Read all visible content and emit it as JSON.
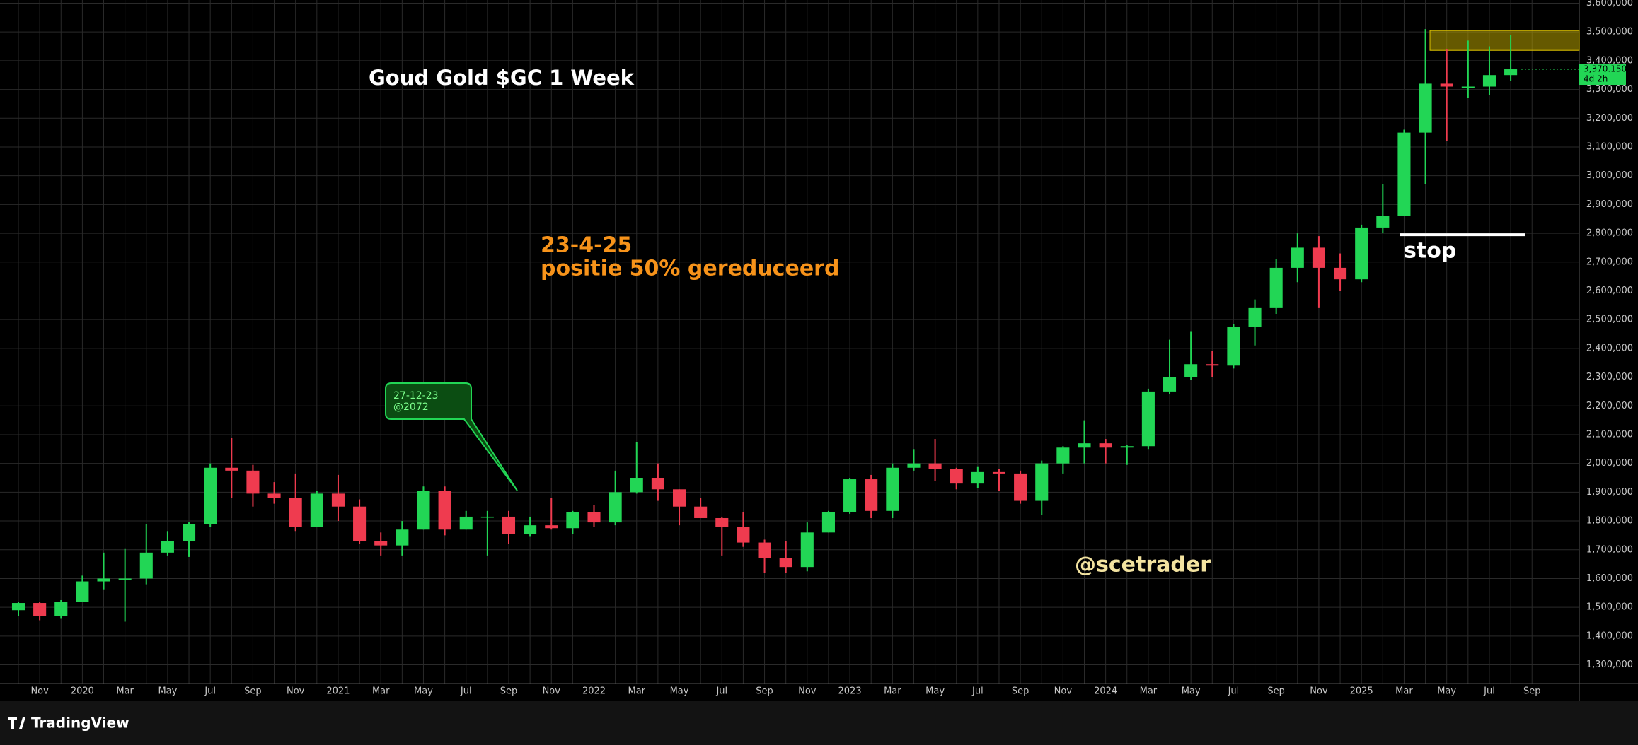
{
  "chart_data": {
    "type": "candlestick",
    "title": "Goud Gold $GC 1 Week",
    "categories": [
      null,
      "Nov",
      null,
      "2020",
      null,
      "Mar",
      null,
      "May",
      null,
      "Jul",
      null,
      "Sep",
      null,
      "Nov",
      null,
      "2021",
      null,
      "Mar",
      null,
      "May",
      null,
      "Jul",
      null,
      "Sep",
      null,
      "Nov",
      null,
      "2022",
      null,
      "Mar",
      null,
      "May",
      null,
      "Jul",
      null,
      "Sep",
      null,
      "Nov",
      null,
      "2023",
      null,
      "Mar",
      null,
      "May",
      null,
      "Jul",
      null,
      "Sep",
      null,
      "Nov",
      null,
      "2024",
      null,
      "Mar",
      null,
      "May",
      null,
      "Jul",
      null,
      "Sep",
      null,
      "Nov",
      null,
      "2025",
      null,
      "Mar",
      null,
      "May",
      null,
      "Jul",
      null,
      "Sep"
    ],
    "open": [
      1490000,
      1515000,
      1470000,
      1520000,
      1590000,
      1600000,
      1600000,
      1690000,
      1730000,
      1790000,
      1985000,
      1975000,
      1895000,
      1880000,
      1780000,
      1895000,
      1850000,
      1730000,
      1715000,
      1770000,
      1905000,
      1770000,
      1815000,
      1815000,
      1755000,
      1785000,
      1775000,
      1830000,
      1795000,
      1900000,
      1950000,
      1910000,
      1850000,
      1810000,
      1780000,
      1725000,
      1670000,
      1640000,
      1760000,
      1830000,
      1945000,
      1835000,
      1985000,
      2000000,
      1980000,
      1930000,
      1970000,
      1965000,
      1870000,
      2000000,
      2055000,
      2070000,
      2055000,
      2060000,
      2250000,
      2300000,
      2345000,
      2340000,
      2475000,
      2540000,
      2680000,
      2750000,
      2680000,
      2640000,
      2820000,
      2860000,
      3150000,
      3320000,
      3310000,
      3310000,
      3350000,
      null
    ],
    "high": [
      1520000,
      1520000,
      1525000,
      1610000,
      1690000,
      1705000,
      1790000,
      1765000,
      1795000,
      2000000,
      2090000,
      1995000,
      1935000,
      1965000,
      1905000,
      1960000,
      1875000,
      1760000,
      1800000,
      1920000,
      1920000,
      1835000,
      1835000,
      1835000,
      1815000,
      1880000,
      1835000,
      1855000,
      1975000,
      2075000,
      2000000,
      1910000,
      1880000,
      1815000,
      1830000,
      1735000,
      1730000,
      1795000,
      1835000,
      1950000,
      1960000,
      2000000,
      2050000,
      2085000,
      1985000,
      1990000,
      1980000,
      1975000,
      2010000,
      2060000,
      2150000,
      2085000,
      2065000,
      2260000,
      2430000,
      2460000,
      2390000,
      2485000,
      2570000,
      2710000,
      2800000,
      2790000,
      2730000,
      2830000,
      2970000,
      3160000,
      3510000,
      3440000,
      3470000,
      3450000,
      3490000,
      null
    ],
    "low": [
      1470000,
      1455000,
      1460000,
      1520000,
      1560000,
      1450000,
      1580000,
      1680000,
      1675000,
      1780000,
      1880000,
      1850000,
      1860000,
      1765000,
      1780000,
      1800000,
      1720000,
      1680000,
      1680000,
      1770000,
      1750000,
      1770000,
      1680000,
      1720000,
      1745000,
      1770000,
      1755000,
      1780000,
      1785000,
      1895000,
      1870000,
      1785000,
      1810000,
      1680000,
      1710000,
      1620000,
      1620000,
      1625000,
      1760000,
      1825000,
      1810000,
      1810000,
      1975000,
      1940000,
      1910000,
      1915000,
      1905000,
      1860000,
      1820000,
      1965000,
      2000000,
      2000000,
      1995000,
      2050000,
      2240000,
      2290000,
      2300000,
      2330000,
      2410000,
      2520000,
      2630000,
      2540000,
      2600000,
      2630000,
      2800000,
      2860000,
      2970000,
      3120000,
      3270000,
      3280000,
      3330000,
      null
    ],
    "close": [
      1515000,
      1470000,
      1520000,
      1590000,
      1600000,
      1600000,
      1690000,
      1730000,
      1790000,
      1985000,
      1975000,
      1895000,
      1880000,
      1780000,
      1895000,
      1850000,
      1730000,
      1715000,
      1770000,
      1905000,
      1770000,
      1815000,
      1815000,
      1755000,
      1785000,
      1775000,
      1830000,
      1795000,
      1900000,
      1950000,
      1910000,
      1850000,
      1810000,
      1780000,
      1725000,
      1670000,
      1640000,
      1760000,
      1830000,
      1945000,
      1835000,
      1985000,
      2000000,
      1980000,
      1930000,
      1970000,
      1965000,
      1870000,
      2000000,
      2055000,
      2070000,
      2055000,
      2060000,
      2250000,
      2300000,
      2345000,
      2340000,
      2475000,
      2540000,
      2680000,
      2750000,
      2680000,
      2640000,
      2820000,
      2860000,
      3150000,
      3320000,
      3310000,
      3310000,
      3350000,
      3370150,
      null
    ],
    "up_color": "#22d655",
    "down_color": "#ef3b4f",
    "ylim": [
      1235000,
      3611000
    ],
    "yticks": [
      {
        "value": 1300000,
        "label": "1,300,000"
      },
      {
        "value": 1400000,
        "label": "1,400,000"
      },
      {
        "value": 1500000,
        "label": "1,500,000"
      },
      {
        "value": 1600000,
        "label": "1,600,000"
      },
      {
        "value": 1700000,
        "label": "1,700,000"
      },
      {
        "value": 1800000,
        "label": "1,800,000"
      },
      {
        "value": 1900000,
        "label": "1,900,000"
      },
      {
        "value": 2000000,
        "label": "2,000,000"
      },
      {
        "value": 2100000,
        "label": "2,100,000"
      },
      {
        "value": 2200000,
        "label": "2,200,000"
      },
      {
        "value": 2300000,
        "label": "2,300,000"
      },
      {
        "value": 2400000,
        "label": "2,400,000"
      },
      {
        "value": 2500000,
        "label": "2,500,000"
      },
      {
        "value": 2600000,
        "label": "2,600,000"
      },
      {
        "value": 2700000,
        "label": "2,700,000"
      },
      {
        "value": 2800000,
        "label": "2,800,000"
      },
      {
        "value": 2900000,
        "label": "2,900,000"
      },
      {
        "value": 3000000,
        "label": "3,000,000"
      },
      {
        "value": 3100000,
        "label": "3,100,000"
      },
      {
        "value": 3200000,
        "label": "3,200,000"
      },
      {
        "value": 3300000,
        "label": "3,300,000"
      },
      {
        "value": 3400000,
        "label": "3,400,000"
      },
      {
        "value": 3500000,
        "label": "3,500,000"
      },
      {
        "value": 3600000,
        "label": "3,600,000"
      }
    ],
    "grid": true,
    "annotations": {
      "note_date": "23-4-25",
      "note_text": "positie 50% gereduceerd",
      "callout": [
        "27-12-23",
        "@2072"
      ],
      "watermark": "@scetrader",
      "stop": {
        "label": "stop",
        "value": 2795000
      },
      "zone": {
        "ylim": [
          3436000,
          3505000
        ],
        "color": "#b8a200"
      },
      "price_label": {
        "value": 3370150,
        "label": "3,370.150"
      },
      "countdown": "4d 2h"
    },
    "brand": "TradingView"
  }
}
